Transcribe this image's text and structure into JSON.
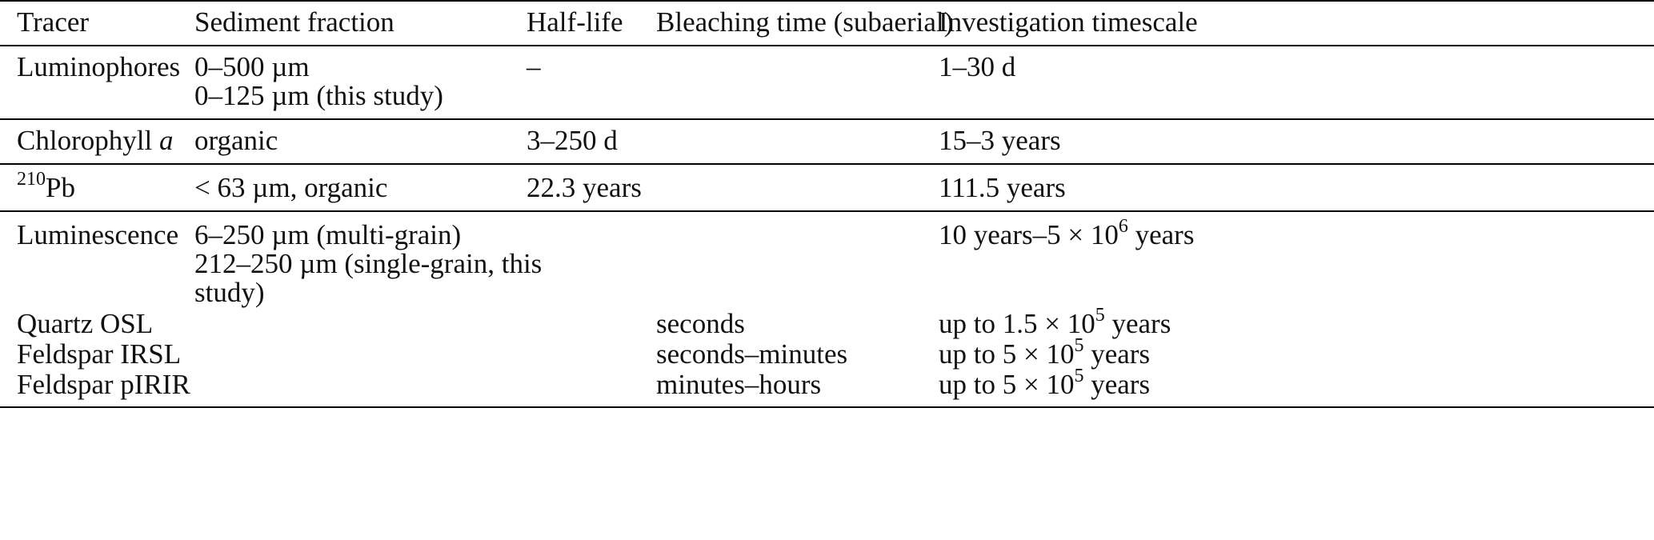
{
  "header": {
    "tracer": "Tracer",
    "sediment_fraction": "Sediment fraction",
    "half_life": "Half-life",
    "bleaching_time": "Bleaching time (subaerial)",
    "investigation_timescale": "Investigation timescale"
  },
  "rows": {
    "luminophores": {
      "tracer": "Luminophores",
      "fraction_line1": "0–500 µm",
      "fraction_line2": "0–125 µm (this study)",
      "half_life": "–",
      "timescale": "1–30 d"
    },
    "chlorophyll": {
      "tracer_text": "Chlorophyll ",
      "tracer_italic": "a",
      "fraction": "organic",
      "half_life": "3–250 d",
      "timescale": "15–3 years"
    },
    "pb210": {
      "tracer_sup": "210",
      "tracer_text": "Pb",
      "fraction": "< 63 µm, organic",
      "half_life": "22.3 years",
      "timescale": "111.5 years"
    },
    "luminescence": {
      "tracer": "Luminescence",
      "fraction_line1": "6–250 µm (multi-grain)",
      "fraction_line2": "212–250 µm (single-grain, this",
      "fraction_line3": "study)",
      "timescale_text": "10 years–5 × 10",
      "timescale_sup": "6",
      "timescale_unit": " years"
    },
    "quartz_osl": {
      "tracer": "Quartz OSL",
      "bleaching": "seconds",
      "timescale_text": "up to 1.5 × 10",
      "timescale_sup": "5",
      "timescale_unit": " years"
    },
    "feldspar_irsl": {
      "tracer": "Feldspar IRSL",
      "bleaching": "seconds–minutes",
      "timescale_text": "up to 5 × 10",
      "timescale_sup": "5",
      "timescale_unit": " years"
    },
    "feldspar_pirir": {
      "tracer": "Feldspar pIRIR",
      "bleaching": "minutes–hours",
      "timescale_text": "up to 5 × 10",
      "timescale_sup": "5",
      "timescale_unit": " years"
    }
  }
}
